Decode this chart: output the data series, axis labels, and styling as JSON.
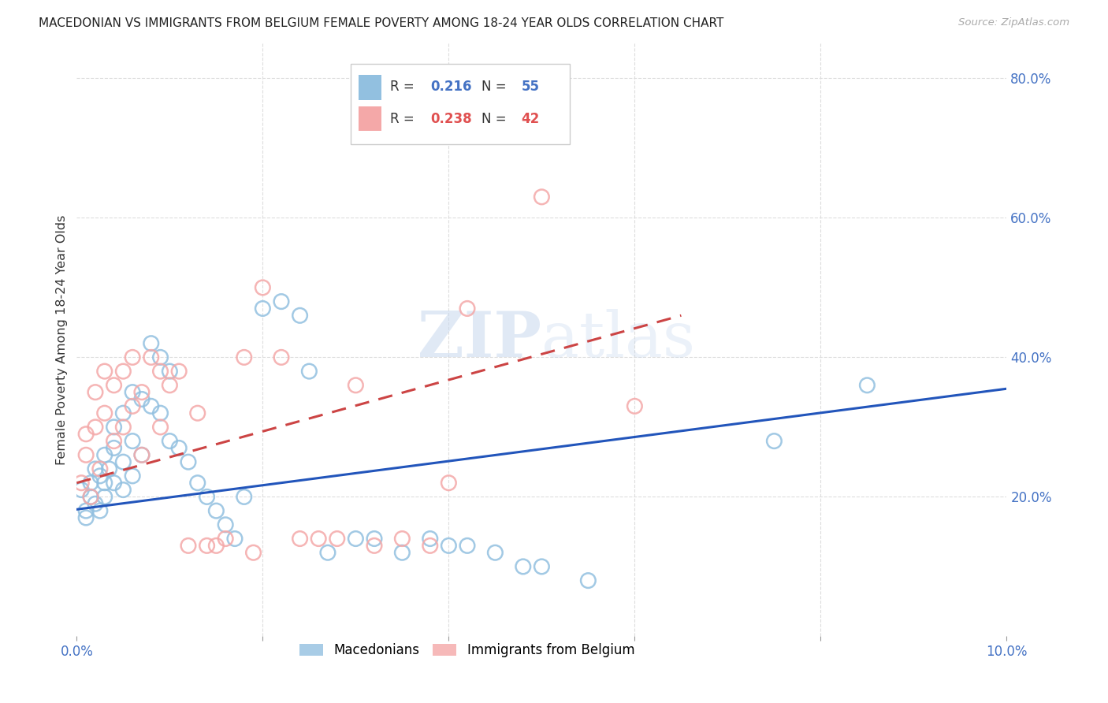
{
  "title": "MACEDONIAN VS IMMIGRANTS FROM BELGIUM FEMALE POVERTY AMONG 18-24 YEAR OLDS CORRELATION CHART",
  "source": "Source: ZipAtlas.com",
  "ylabel": "Female Poverty Among 18-24 Year Olds",
  "xlim": [
    0.0,
    0.1
  ],
  "ylim": [
    0.0,
    0.85
  ],
  "right_yticks": [
    0.2,
    0.4,
    0.6,
    0.8
  ],
  "right_yticklabels": [
    "20.0%",
    "40.0%",
    "60.0%",
    "80.0%"
  ],
  "xtick_positions": [
    0.0,
    0.02,
    0.04,
    0.06,
    0.08,
    0.1
  ],
  "xticklabels": [
    "0.0%",
    "",
    "",
    "",
    "",
    "10.0%"
  ],
  "blue_color": "#92c0e0",
  "pink_color": "#f4a8a8",
  "blue_line_color": "#2255bb",
  "pink_line_color": "#cc4444",
  "grid_color": "#dddddd",
  "macedonians_x": [
    0.0005,
    0.001,
    0.001,
    0.0015,
    0.0015,
    0.002,
    0.002,
    0.0025,
    0.0025,
    0.003,
    0.003,
    0.003,
    0.0035,
    0.004,
    0.004,
    0.004,
    0.005,
    0.005,
    0.005,
    0.006,
    0.006,
    0.006,
    0.007,
    0.007,
    0.008,
    0.008,
    0.009,
    0.009,
    0.01,
    0.01,
    0.011,
    0.012,
    0.013,
    0.014,
    0.015,
    0.016,
    0.017,
    0.018,
    0.02,
    0.022,
    0.024,
    0.025,
    0.027,
    0.03,
    0.032,
    0.035,
    0.038,
    0.04,
    0.042,
    0.045,
    0.048,
    0.05,
    0.055,
    0.075,
    0.085
  ],
  "macedonians_y": [
    0.21,
    0.18,
    0.17,
    0.22,
    0.2,
    0.19,
    0.24,
    0.18,
    0.23,
    0.26,
    0.22,
    0.2,
    0.24,
    0.3,
    0.27,
    0.22,
    0.32,
    0.25,
    0.21,
    0.35,
    0.28,
    0.23,
    0.34,
    0.26,
    0.42,
    0.33,
    0.4,
    0.32,
    0.38,
    0.28,
    0.27,
    0.25,
    0.22,
    0.2,
    0.18,
    0.16,
    0.14,
    0.2,
    0.47,
    0.48,
    0.46,
    0.38,
    0.12,
    0.14,
    0.14,
    0.12,
    0.14,
    0.13,
    0.13,
    0.12,
    0.1,
    0.1,
    0.08,
    0.28,
    0.36
  ],
  "belgium_x": [
    0.0005,
    0.001,
    0.001,
    0.0015,
    0.002,
    0.002,
    0.0025,
    0.003,
    0.003,
    0.004,
    0.004,
    0.005,
    0.005,
    0.006,
    0.006,
    0.007,
    0.007,
    0.008,
    0.009,
    0.009,
    0.01,
    0.011,
    0.012,
    0.013,
    0.014,
    0.015,
    0.016,
    0.018,
    0.019,
    0.02,
    0.022,
    0.024,
    0.026,
    0.028,
    0.03,
    0.032,
    0.035,
    0.038,
    0.04,
    0.042,
    0.05,
    0.06
  ],
  "belgium_y": [
    0.22,
    0.26,
    0.29,
    0.2,
    0.3,
    0.35,
    0.24,
    0.32,
    0.38,
    0.36,
    0.28,
    0.38,
    0.3,
    0.4,
    0.33,
    0.35,
    0.26,
    0.4,
    0.38,
    0.3,
    0.36,
    0.38,
    0.13,
    0.32,
    0.13,
    0.13,
    0.14,
    0.4,
    0.12,
    0.5,
    0.4,
    0.14,
    0.14,
    0.14,
    0.36,
    0.13,
    0.14,
    0.13,
    0.22,
    0.47,
    0.63,
    0.33
  ],
  "mac_trend_x": [
    0.0,
    0.1
  ],
  "mac_trend_y": [
    0.182,
    0.355
  ],
  "bel_trend_x": [
    0.0,
    0.065
  ],
  "bel_trend_y": [
    0.22,
    0.46
  ]
}
